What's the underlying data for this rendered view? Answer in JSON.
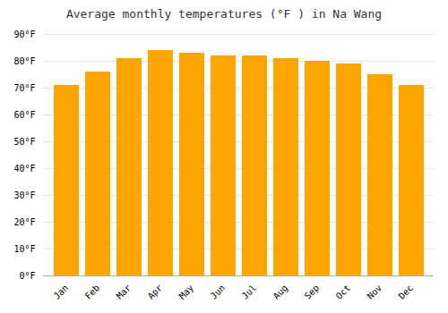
{
  "chart_data": {
    "type": "bar",
    "title": "Average monthly temperatures (°F ) in Na Wang",
    "categories": [
      "Jan",
      "Feb",
      "Mar",
      "Apr",
      "May",
      "Jun",
      "Jul",
      "Aug",
      "Sep",
      "Oct",
      "Nov",
      "Dec"
    ],
    "values": [
      71,
      76,
      81,
      84,
      83,
      82,
      82,
      81,
      80,
      79,
      75,
      71
    ],
    "color": "#FFA500",
    "ylim": [
      0,
      90
    ],
    "yticks": [
      {
        "value": 0,
        "label": "0°F"
      },
      {
        "value": 10,
        "label": "10°F"
      },
      {
        "value": 20,
        "label": "20°F"
      },
      {
        "value": 30,
        "label": "30°F"
      },
      {
        "value": 40,
        "label": "40°F"
      },
      {
        "value": 50,
        "label": "50°F"
      },
      {
        "value": 60,
        "label": "60°F"
      },
      {
        "value": 70,
        "label": "70°F"
      },
      {
        "value": 80,
        "label": "80°F"
      },
      {
        "value": 90,
        "label": "90°F"
      }
    ],
    "grid": true
  }
}
